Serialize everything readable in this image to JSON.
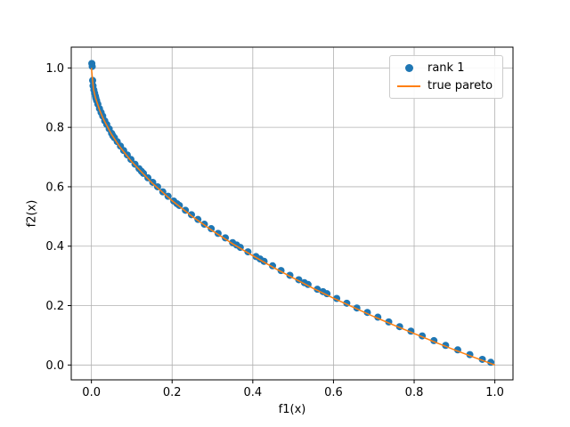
{
  "figure": {
    "background": "#ffffff",
    "grid_color": "#b0b0b0",
    "axes_edge_color": "#000000"
  },
  "chart_data": {
    "type": "scatter",
    "title": "",
    "xlabel": "f1(x)",
    "ylabel": "f2(x)",
    "xlim": [
      -0.05,
      1.045
    ],
    "ylim": [
      -0.05,
      1.07
    ],
    "xticks": [
      0.0,
      0.2,
      0.4,
      0.6,
      0.8,
      1.0
    ],
    "yticks": [
      0.0,
      0.2,
      0.4,
      0.6,
      0.8,
      1.0
    ],
    "grid": true,
    "grid_color": "#b0b0b0",
    "legend_position": "upper right",
    "series": [
      {
        "name": "rank 1",
        "type": "scatter",
        "color": "#1f77b4",
        "marker": "circle",
        "points": [
          [
            0.001,
            1.015
          ],
          [
            0.002,
            1.005
          ],
          [
            0.003,
            0.958
          ],
          [
            0.004,
            0.94
          ],
          [
            0.006,
            0.926
          ],
          [
            0.008,
            0.915
          ],
          [
            0.01,
            0.905
          ],
          [
            0.011,
            0.898
          ],
          [
            0.013,
            0.89
          ],
          [
            0.016,
            0.878
          ],
          [
            0.02,
            0.863
          ],
          [
            0.024,
            0.85
          ],
          [
            0.028,
            0.838
          ],
          [
            0.033,
            0.822
          ],
          [
            0.038,
            0.81
          ],
          [
            0.044,
            0.795
          ],
          [
            0.05,
            0.78
          ],
          [
            0.053,
            0.772
          ],
          [
            0.057,
            0.765
          ],
          [
            0.064,
            0.752
          ],
          [
            0.072,
            0.737
          ],
          [
            0.08,
            0.722
          ],
          [
            0.089,
            0.707
          ],
          [
            0.098,
            0.692
          ],
          [
            0.108,
            0.676
          ],
          [
            0.118,
            0.661
          ],
          [
            0.124,
            0.652
          ],
          [
            0.129,
            0.645
          ],
          [
            0.14,
            0.63
          ],
          [
            0.152,
            0.615
          ],
          [
            0.164,
            0.6
          ],
          [
            0.177,
            0.583
          ],
          [
            0.19,
            0.568
          ],
          [
            0.204,
            0.552
          ],
          [
            0.212,
            0.543
          ],
          [
            0.218,
            0.537
          ],
          [
            0.233,
            0.521
          ],
          [
            0.248,
            0.506
          ],
          [
            0.264,
            0.49
          ],
          [
            0.28,
            0.474
          ],
          [
            0.297,
            0.459
          ],
          [
            0.314,
            0.443
          ],
          [
            0.332,
            0.428
          ],
          [
            0.35,
            0.412
          ],
          [
            0.36,
            0.404
          ],
          [
            0.369,
            0.396
          ],
          [
            0.388,
            0.381
          ],
          [
            0.408,
            0.365
          ],
          [
            0.418,
            0.357
          ],
          [
            0.428,
            0.349
          ],
          [
            0.449,
            0.334
          ],
          [
            0.47,
            0.318
          ],
          [
            0.492,
            0.302
          ],
          [
            0.514,
            0.287
          ],
          [
            0.528,
            0.277
          ],
          [
            0.537,
            0.271
          ],
          [
            0.56,
            0.255
          ],
          [
            0.574,
            0.247
          ],
          [
            0.584,
            0.24
          ],
          [
            0.608,
            0.224
          ],
          [
            0.633,
            0.208
          ],
          [
            0.658,
            0.192
          ],
          [
            0.684,
            0.177
          ],
          [
            0.71,
            0.161
          ],
          [
            0.737,
            0.145
          ],
          [
            0.764,
            0.129
          ],
          [
            0.792,
            0.114
          ],
          [
            0.82,
            0.098
          ],
          [
            0.849,
            0.082
          ],
          [
            0.878,
            0.066
          ],
          [
            0.908,
            0.051
          ],
          [
            0.938,
            0.035
          ],
          [
            0.969,
            0.019
          ],
          [
            0.99,
            0.009
          ]
        ]
      },
      {
        "name": "true pareto",
        "type": "line",
        "color": "#ff7f0e",
        "formula": "f2 = 1 - sqrt(f1)",
        "points": [
          [
            0.0,
            1.0
          ],
          [
            0.005,
            0.929
          ],
          [
            0.01,
            0.9
          ],
          [
            0.02,
            0.859
          ],
          [
            0.03,
            0.827
          ],
          [
            0.05,
            0.776
          ],
          [
            0.07,
            0.735
          ],
          [
            0.1,
            0.684
          ],
          [
            0.15,
            0.613
          ],
          [
            0.2,
            0.553
          ],
          [
            0.25,
            0.5
          ],
          [
            0.3,
            0.452
          ],
          [
            0.35,
            0.408
          ],
          [
            0.4,
            0.368
          ],
          [
            0.45,
            0.329
          ],
          [
            0.5,
            0.293
          ],
          [
            0.55,
            0.258
          ],
          [
            0.6,
            0.225
          ],
          [
            0.65,
            0.194
          ],
          [
            0.7,
            0.163
          ],
          [
            0.75,
            0.134
          ],
          [
            0.8,
            0.106
          ],
          [
            0.85,
            0.078
          ],
          [
            0.9,
            0.051
          ],
          [
            0.95,
            0.025
          ],
          [
            1.0,
            0.0
          ]
        ]
      }
    ]
  }
}
